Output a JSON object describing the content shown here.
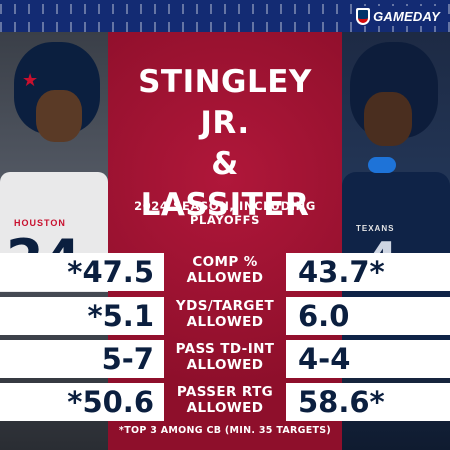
{
  "brand": {
    "logo_text": "GAMEDAY"
  },
  "header": {
    "title_line1": "STINGLEY JR.",
    "title_line2": "&",
    "title_line3": "LASSITER",
    "subtitle": "2024 SEASON, INCLUDING PLAYOFFS"
  },
  "players": {
    "left": {
      "jersey_word": "HOUSTON",
      "jersey_number": "24"
    },
    "right": {
      "jersey_word": "TEXANS",
      "jersey_number": "4"
    }
  },
  "stats": [
    {
      "label_line1": "COMP %",
      "label_line2": "ALLOWED",
      "left": "*47.5",
      "right": "43.7*"
    },
    {
      "label_line1": "YDS/TARGET",
      "label_line2": "ALLOWED",
      "left": "*5.1",
      "right": "6.0"
    },
    {
      "label_line1": "PASS TD-INT",
      "label_line2": "ALLOWED",
      "left": "5-7",
      "right": "4-4"
    },
    {
      "label_line1": "PASSER RTG",
      "label_line2": "ALLOWED",
      "left": "*50.6",
      "right": "58.6*"
    }
  ],
  "footnote": "*TOP 3 AMONG CB (MIN. 35 TARGETS)",
  "colors": {
    "center_red": "#9c1230",
    "navy": "#0b1f3f",
    "band_blue": "#132b73"
  }
}
